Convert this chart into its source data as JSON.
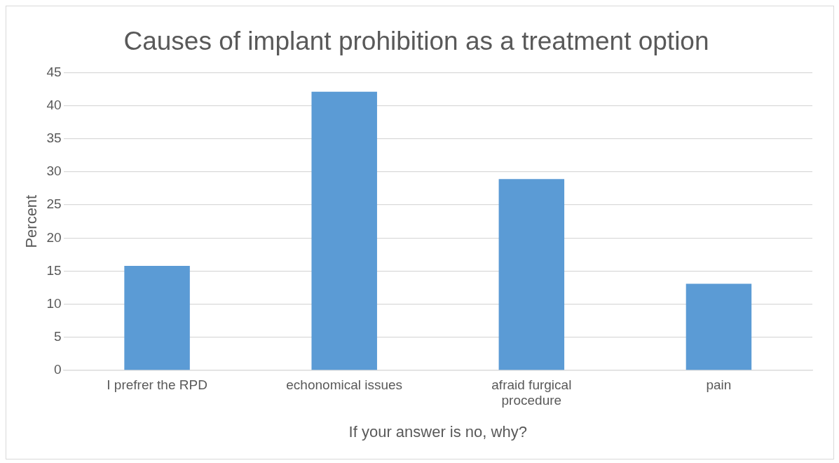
{
  "chart_data": {
    "type": "bar",
    "title": "Causes of implant prohibition as a treatment option",
    "xlabel": "If your answer is no, why?",
    "ylabel": "Percent",
    "categories": [
      "I prefrer the RPD",
      "echonomical issues",
      "afraid furgical procedure",
      "pain"
    ],
    "values": [
      15.8,
      42.1,
      28.9,
      13.1
    ],
    "color": "#5b9bd5",
    "ylim": [
      0,
      45
    ],
    "yticks": [
      0,
      5,
      10,
      15,
      20,
      25,
      30,
      35,
      40,
      45
    ],
    "grid": "y"
  }
}
